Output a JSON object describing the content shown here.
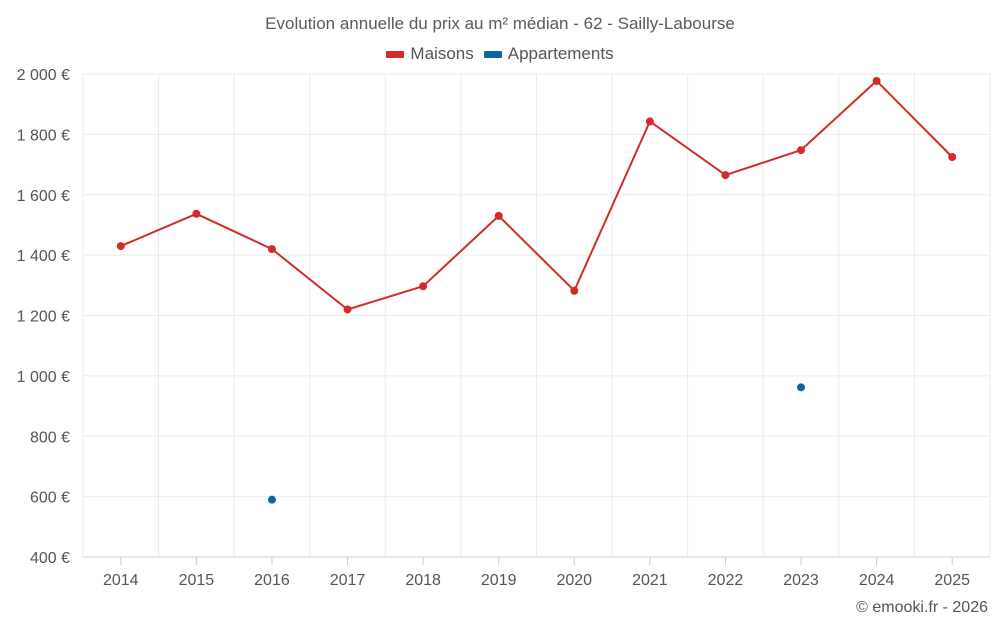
{
  "chart_data": {
    "type": "line",
    "title": "Evolution annuelle du prix au m² médian - 62 - Sailly-Labourse",
    "categories": [
      "2014",
      "2015",
      "2016",
      "2017",
      "2018",
      "2019",
      "2020",
      "2021",
      "2022",
      "2023",
      "2024",
      "2025"
    ],
    "series": [
      {
        "name": "Maisons",
        "color": "#d42a2a",
        "values": [
          1430,
          1537,
          1420,
          1220,
          1297,
          1530,
          1282,
          1843,
          1665,
          1748,
          1977,
          1725
        ]
      },
      {
        "name": "Appartements",
        "color": "#0b65a0",
        "values": [
          null,
          null,
          590,
          null,
          null,
          null,
          null,
          null,
          null,
          962,
          null,
          null
        ]
      }
    ],
    "ylim": [
      400,
      2000
    ],
    "yticks": [
      400,
      600,
      800,
      1000,
      1200,
      1400,
      1600,
      1800,
      2000
    ],
    "ytick_labels": [
      "400 €",
      "600 €",
      "800 €",
      "1 000 €",
      "1 200 €",
      "1 400 €",
      "1 600 €",
      "1 800 €",
      "2 000 €"
    ],
    "xlabel": "",
    "ylabel": "",
    "grid": true,
    "legend_position": "top-center"
  },
  "credit": "© emooki.fr - 2026"
}
